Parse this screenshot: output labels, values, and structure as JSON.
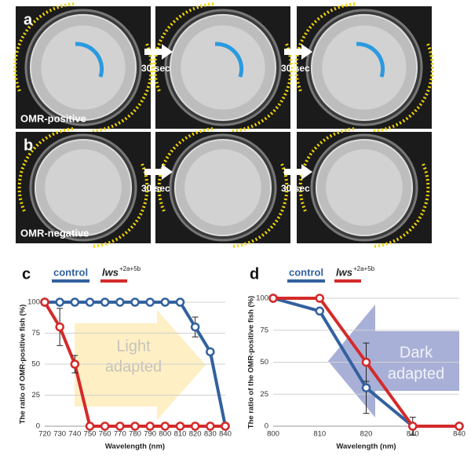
{
  "photos": [
    {
      "label": "a",
      "caption": "OMR-positive",
      "intervals": [
        "30 sec",
        "30 sec"
      ]
    },
    {
      "label": "b",
      "caption": "OMR-negative",
      "intervals": [
        "30 sec",
        "30 sec"
      ]
    }
  ],
  "chart_data": [
    {
      "type": "line",
      "panel_label": "c",
      "x_label": "Wavelength (nm)",
      "y_label": "The ratio of OMR-positive fish (%)",
      "annotation": [
        "Light",
        "adapted"
      ],
      "categories": [
        "720",
        "730",
        "740",
        "750",
        "760",
        "770",
        "780",
        "790",
        "800",
        "810",
        "820",
        "830",
        "840"
      ],
      "ylim": [
        0,
        100
      ],
      "yticks": [
        0,
        25,
        50,
        75,
        100
      ],
      "grid": true,
      "series": [
        {
          "name": "control",
          "color": "#33619e",
          "values": [
            100,
            100,
            100,
            100,
            100,
            100,
            100,
            100,
            100,
            100,
            80,
            60,
            0
          ],
          "errors": [
            null,
            null,
            null,
            null,
            null,
            null,
            null,
            null,
            null,
            null,
            8,
            null,
            null
          ]
        },
        {
          "name": "lws",
          "superscript": "+2a+5b",
          "color": "#d42a2a",
          "values": [
            100,
            80,
            50,
            0,
            0,
            0,
            0,
            0,
            0,
            0,
            0,
            0,
            0
          ],
          "errors": [
            null,
            15,
            7,
            null,
            null,
            null,
            null,
            null,
            null,
            null,
            null,
            null,
            null
          ]
        }
      ]
    },
    {
      "type": "line",
      "panel_label": "d",
      "x_label": "Wavelength (nm)",
      "y_label": "The ratio of the OMR-positive fish (%)",
      "annotation": [
        "Dark",
        "adapted"
      ],
      "categories": [
        "800",
        "810",
        "820",
        "840",
        "840"
      ],
      "ylim": [
        0,
        100
      ],
      "yticks": [
        0,
        25,
        50,
        75,
        100
      ],
      "grid": true,
      "series": [
        {
          "name": "control",
          "color": "#33619e",
          "values": [
            100,
            90,
            30,
            0,
            0
          ],
          "errors": [
            null,
            null,
            20,
            null,
            null
          ]
        },
        {
          "name": "lws",
          "superscript": "+2a+5b",
          "color": "#d42a2a",
          "values": [
            100,
            100,
            50,
            0,
            0
          ],
          "errors": [
            null,
            null,
            15,
            7,
            null
          ]
        }
      ]
    }
  ]
}
